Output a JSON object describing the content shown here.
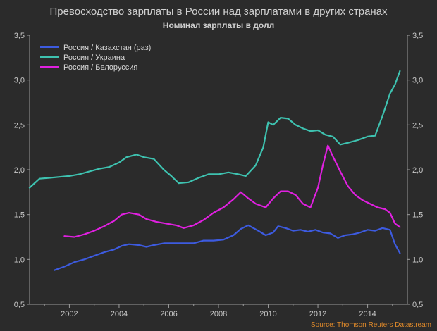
{
  "chart_data": {
    "type": "line",
    "title": "Превосходство зарплаты в России над зарплатами в других странах",
    "subtitle": "Номинал зарплаты в долл",
    "source": "Source: Thomson Reuters Datastream",
    "xlabel": "",
    "ylabel": "",
    "xlim": [
      2000.4,
      2015.6
    ],
    "ylim": [
      0.5,
      3.5
    ],
    "x_ticks": [
      2002,
      2004,
      2006,
      2008,
      2010,
      2012,
      2014
    ],
    "x_tick_labels": [
      "2002",
      "2004",
      "2006",
      "2008",
      "2010",
      "2012",
      "2014"
    ],
    "y_ticks": [
      0.5,
      1.0,
      1.5,
      2.0,
      2.5,
      3.0,
      3.5
    ],
    "y_tick_labels": [
      "0,5",
      "1,0",
      "1,5",
      "2,0",
      "2,5",
      "3,0",
      "3,5"
    ],
    "grid": false,
    "legend_position": "top-left",
    "background": "#2b2b2b",
    "axis_color": "#9a9a9a",
    "series": [
      {
        "name": "Россия / Казахстан (раз)",
        "color": "#3d5be0",
        "x": [
          2001.4,
          2001.8,
          2002.2,
          2002.6,
          2003.0,
          2003.4,
          2003.8,
          2004.1,
          2004.4,
          2004.8,
          2005.1,
          2005.4,
          2005.8,
          2006.2,
          2006.6,
          2007.0,
          2007.4,
          2007.8,
          2008.2,
          2008.6,
          2008.9,
          2009.2,
          2009.6,
          2009.9,
          2010.2,
          2010.4,
          2010.7,
          2011.0,
          2011.3,
          2011.6,
          2011.9,
          2012.2,
          2012.5,
          2012.8,
          2013.1,
          2013.4,
          2013.7,
          2014.0,
          2014.3,
          2014.6,
          2014.9,
          2015.1,
          2015.3
        ],
        "y": [
          0.88,
          0.92,
          0.97,
          1.0,
          1.04,
          1.08,
          1.11,
          1.15,
          1.17,
          1.16,
          1.14,
          1.16,
          1.18,
          1.18,
          1.18,
          1.18,
          1.21,
          1.21,
          1.22,
          1.27,
          1.34,
          1.38,
          1.32,
          1.27,
          1.3,
          1.37,
          1.35,
          1.32,
          1.33,
          1.31,
          1.33,
          1.3,
          1.29,
          1.24,
          1.27,
          1.28,
          1.3,
          1.33,
          1.32,
          1.35,
          1.33,
          1.17,
          1.07
        ]
      },
      {
        "name": "Россия / Украина",
        "color": "#3ec2b0",
        "x": [
          2000.4,
          2000.8,
          2001.2,
          2001.6,
          2002.0,
          2002.4,
          2002.8,
          2003.2,
          2003.6,
          2004.0,
          2004.3,
          2004.7,
          2005.0,
          2005.4,
          2005.8,
          2006.1,
          2006.4,
          2006.8,
          2007.2,
          2007.6,
          2008.0,
          2008.4,
          2008.8,
          2009.1,
          2009.5,
          2009.8,
          2010.0,
          2010.2,
          2010.5,
          2010.8,
          2011.1,
          2011.4,
          2011.7,
          2012.0,
          2012.3,
          2012.6,
          2012.9,
          2013.2,
          2013.6,
          2014.0,
          2014.3,
          2014.6,
          2014.9,
          2015.1,
          2015.3
        ],
        "y": [
          1.8,
          1.9,
          1.91,
          1.92,
          1.93,
          1.95,
          1.98,
          2.01,
          2.03,
          2.08,
          2.14,
          2.17,
          2.14,
          2.12,
          2.0,
          1.93,
          1.85,
          1.86,
          1.91,
          1.95,
          1.95,
          1.97,
          1.95,
          1.93,
          2.05,
          2.25,
          2.53,
          2.5,
          2.58,
          2.57,
          2.5,
          2.46,
          2.43,
          2.44,
          2.39,
          2.37,
          2.28,
          2.3,
          2.33,
          2.37,
          2.38,
          2.6,
          2.85,
          2.95,
          3.1
        ]
      },
      {
        "name": "Россия / Белоруссия",
        "color": "#e020e0",
        "x": [
          2001.8,
          2002.2,
          2002.6,
          2003.0,
          2003.4,
          2003.8,
          2004.1,
          2004.4,
          2004.8,
          2005.1,
          2005.5,
          2005.9,
          2006.3,
          2006.6,
          2007.0,
          2007.4,
          2007.8,
          2008.2,
          2008.6,
          2008.9,
          2009.2,
          2009.5,
          2009.9,
          2010.2,
          2010.5,
          2010.8,
          2011.1,
          2011.4,
          2011.7,
          2012.0,
          2012.2,
          2012.4,
          2012.6,
          2012.9,
          2013.2,
          2013.5,
          2013.8,
          2014.1,
          2014.4,
          2014.7,
          2014.9,
          2015.1,
          2015.3
        ],
        "y": [
          1.26,
          1.25,
          1.28,
          1.32,
          1.37,
          1.43,
          1.5,
          1.52,
          1.5,
          1.45,
          1.42,
          1.4,
          1.38,
          1.35,
          1.38,
          1.44,
          1.52,
          1.58,
          1.67,
          1.75,
          1.68,
          1.62,
          1.58,
          1.68,
          1.76,
          1.76,
          1.72,
          1.62,
          1.58,
          1.8,
          2.05,
          2.27,
          2.15,
          1.98,
          1.82,
          1.72,
          1.66,
          1.62,
          1.58,
          1.56,
          1.52,
          1.4,
          1.36
        ]
      }
    ]
  }
}
